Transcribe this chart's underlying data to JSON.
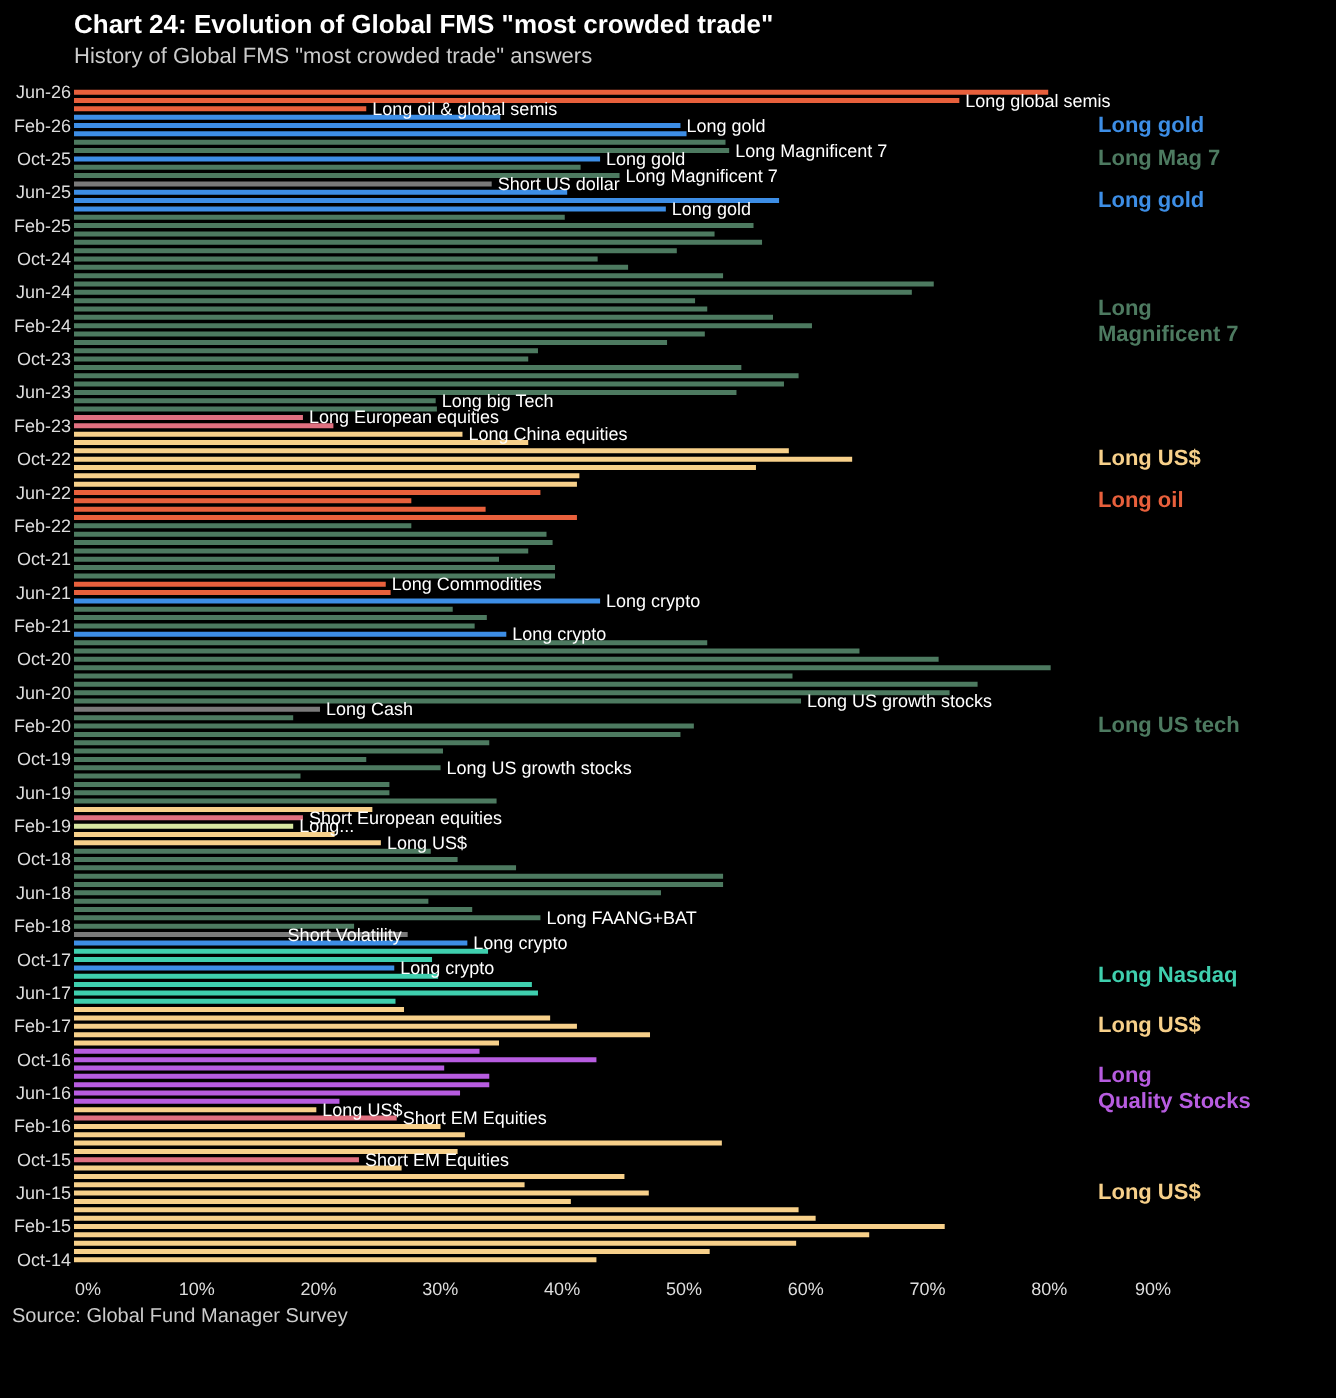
{
  "chart_data": {
    "type": "bar",
    "orientation": "horizontal",
    "title": "Chart 24: Evolution of Global FMS \"most crowded trade\"",
    "subtitle": "History of Global FMS \"most crowded trade\" answers",
    "categories": [
      "Jun-26",
      null,
      null,
      null,
      "Feb-26",
      null,
      null,
      null,
      "Oct-25",
      null,
      null,
      null,
      "Jun-25",
      null,
      null,
      null,
      "Feb-25",
      null,
      null,
      null,
      "Oct-24",
      null,
      null,
      null,
      "Jun-24",
      null,
      null,
      null,
      "Feb-24",
      null,
      null,
      null,
      "Oct-23",
      null,
      null,
      null,
      "Jun-23",
      null,
      null,
      null,
      "Feb-23",
      null,
      null,
      null,
      "Oct-22",
      null,
      null,
      null,
      "Jun-22",
      null,
      null,
      null,
      "Feb-22",
      null,
      null,
      null,
      "Oct-21",
      null,
      null,
      null,
      "Jun-21",
      null,
      null,
      null,
      "Feb-21",
      null,
      null,
      null,
      "Oct-20",
      null,
      null,
      null,
      "Jun-20",
      null,
      null,
      null,
      "Feb-20",
      null,
      null,
      null,
      "Oct-19",
      null,
      null,
      null,
      "Jun-19",
      null,
      null,
      null,
      "Feb-19",
      null,
      null,
      null,
      "Oct-18",
      null,
      null,
      null,
      "Jun-18",
      null,
      null,
      null,
      "Feb-18",
      null,
      null,
      null,
      "Oct-17",
      null,
      null,
      null,
      "Jun-17",
      null,
      null,
      null,
      "Feb-17",
      null,
      null,
      null,
      "Oct-16",
      null,
      null,
      null,
      "Jun-16",
      null,
      null,
      null,
      "Feb-16",
      null,
      null,
      null,
      "Oct-15",
      null,
      null,
      null,
      "Jun-15",
      null,
      null,
      null,
      "Feb-15",
      null,
      null,
      null,
      "Oct-14"
    ],
    "values": [
      80.0,
      72.7,
      24.0,
      35,
      49.8,
      50.3,
      53.5,
      53.8,
      43.2,
      41.6,
      44.8,
      34.3,
      40.5,
      57.9,
      48.6,
      40.3,
      55.8,
      52.6,
      56.5,
      49.5,
      43.0,
      45.5,
      53.3,
      70.6,
      68.8,
      51.0,
      52.0,
      57.4,
      60.6,
      51.8,
      48.7,
      38.1,
      37.3,
      54.8,
      59.5,
      58.3,
      54.4,
      29.7,
      29.8,
      18.8,
      21.3,
      31.9,
      37.3,
      58.7,
      63.9,
      56.0,
      41.5,
      41.3,
      38.3,
      27.7,
      33.8,
      41.3,
      27.7,
      38.8,
      39.3,
      37.3,
      34.9,
      39.5,
      39.5,
      25.6,
      26.0,
      43.2,
      31.1,
      33.9,
      32.9,
      35.5,
      52.0,
      64.5,
      71.0,
      80.2,
      59.0,
      74.2,
      71.9,
      59.7,
      20.2,
      18.0,
      50.9,
      49.8,
      34.1,
      30.3,
      24.0,
      30.1,
      18.6,
      25.9,
      25.9,
      34.7,
      24.5,
      18.8,
      18.0,
      21.4,
      25.2,
      29.3,
      31.5,
      36.3,
      53.3,
      53.3,
      48.2,
      29.1,
      32.7,
      38.3,
      23.0,
      27.4,
      32.3,
      34.0,
      29.4,
      26.3,
      29.9,
      37.6,
      38.1,
      26.4,
      27.1,
      39.1,
      41.3,
      47.3,
      34.9,
      33.3,
      42.9,
      30.4,
      34.1,
      34.1,
      31.7,
      21.8,
      19.9,
      26.5,
      30.1,
      32.1,
      53.2,
      31.5,
      23.4,
      26.9,
      45.2,
      37.0,
      47.2,
      40.8,
      59.5,
      60.9,
      71.5,
      65.3,
      59.3,
      52.2,
      42.9
    ],
    "colors": [
      "#e8603c",
      "#e8603c",
      "#e8603c",
      "#3d8ee6",
      "#3d8ee6",
      "#3d8ee6",
      "#4d7a60",
      "#4d7a60",
      "#3d8ee6",
      "#4d7a60",
      "#4d7a60",
      "#7a7a7a",
      "#3d8ee6",
      "#3d8ee6",
      "#3d8ee6",
      "#4d7a60",
      "#4d7a60",
      "#4d7a60",
      "#4d7a60",
      "#4d7a60",
      "#4d7a60",
      "#4d7a60",
      "#4d7a60",
      "#4d7a60",
      "#4d7a60",
      "#4d7a60",
      "#4d7a60",
      "#4d7a60",
      "#4d7a60",
      "#4d7a60",
      "#4d7a60",
      "#4d7a60",
      "#4d7a60",
      "#4d7a60",
      "#4d7a60",
      "#4d7a60",
      "#4d7a60",
      "#4d7a60",
      "#4d7a60",
      "#e07080",
      "#e07080",
      "#f7d08a",
      "#f7d08a",
      "#f7d08a",
      "#f7d08a",
      "#f7d08a",
      "#f7d08a",
      "#f7d08a",
      "#e8603c",
      "#e8603c",
      "#e8603c",
      "#e8603c",
      "#4d7a60",
      "#4d7a60",
      "#4d7a60",
      "#4d7a60",
      "#4d7a60",
      "#4d7a60",
      "#4d7a60",
      "#e8603c",
      "#e8603c",
      "#3d8ee6",
      "#4d7a60",
      "#4d7a60",
      "#4d7a60",
      "#3d8ee6",
      "#4d7a60",
      "#4d7a60",
      "#4d7a60",
      "#4d7a60",
      "#4d7a60",
      "#4d7a60",
      "#4d7a60",
      "#4d7a60",
      "#7a7a7a",
      "#4d7a60",
      "#4d7a60",
      "#4d7a60",
      "#4d7a60",
      "#4d7a60",
      "#4d7a60",
      "#4d7a60",
      "#4d7a60",
      "#4d7a60",
      "#4d7a60",
      "#4d7a60",
      "#f7d08a",
      "#e07080",
      "#d7e6a0",
      "#f7d08a",
      "#f7d08a",
      "#4d7a60",
      "#4d7a60",
      "#4d7a60",
      "#4d7a60",
      "#4d7a60",
      "#4d7a60",
      "#4d7a60",
      "#4d7a60",
      "#4d7a60",
      "#4d7a60",
      "#7a7a7a",
      "#3d8ee6",
      "#3fcfae",
      "#3fcfae",
      "#3d8ee6",
      "#3fcfae",
      "#3fcfae",
      "#3fcfae",
      "#3fcfae",
      "#f7d08a",
      "#f7d08a",
      "#f7d08a",
      "#f7d08a",
      "#f7d08a",
      "#b75ce0",
      "#b75ce0",
      "#b75ce0",
      "#b75ce0",
      "#b75ce0",
      "#b75ce0",
      "#b75ce0",
      "#f7d08a",
      "#e07080",
      "#f7d08a",
      "#f7d08a",
      "#f7d08a",
      "#f7d08a",
      "#e07080",
      "#f7d08a",
      "#f7d08a",
      "#f7d08a",
      "#f7d08a",
      "#f7d08a",
      "#f7d08a",
      "#f7d08a",
      "#f7d08a",
      "#f7d08a",
      "#f7d08a",
      "#f7d08a",
      "#f7d08a"
    ],
    "value_labels": [
      null,
      "Long global semis",
      "Long oil & global semis",
      null,
      "Long gold",
      null,
      null,
      "Long Magnificent 7",
      "Long gold",
      null,
      "Long Magnificent 7",
      "Short US dollar",
      null,
      null,
      "Long gold",
      null,
      null,
      null,
      null,
      null,
      null,
      null,
      null,
      null,
      null,
      null,
      null,
      null,
      null,
      null,
      null,
      null,
      null,
      null,
      null,
      null,
      null,
      "Long big Tech",
      null,
      "Long European equities",
      null,
      "Long China equities",
      null,
      null,
      null,
      null,
      null,
      null,
      null,
      null,
      null,
      null,
      null,
      null,
      null,
      null,
      null,
      null,
      null,
      "Long Commodities",
      null,
      "Long crypto",
      null,
      null,
      null,
      "Long crypto",
      null,
      null,
      null,
      null,
      null,
      null,
      null,
      "Long US growth stocks",
      "Long Cash",
      null,
      null,
      null,
      null,
      null,
      null,
      "Long US growth stocks",
      null,
      null,
      null,
      null,
      null,
      "Short European equities",
      "Long...",
      null,
      "Long US$",
      null,
      null,
      null,
      null,
      null,
      null,
      null,
      null,
      "Long FAANG+BAT",
      null,
      "Short Volatility",
      "Long crypto",
      null,
      null,
      "Long crypto",
      null,
      null,
      null,
      null,
      null,
      null,
      null,
      null,
      null,
      null,
      null,
      null,
      null,
      null,
      null,
      null,
      "Long US$",
      "Short EM Equities",
      null,
      null,
      null,
      null,
      "Short EM Equities",
      null,
      null,
      null,
      null,
      null,
      null,
      null,
      null,
      null,
      null,
      null,
      null
    ],
    "xlim": [
      0,
      90
    ],
    "xticks": [
      {
        "value": 0,
        "label": "0%"
      },
      {
        "value": 10,
        "label": "10%"
      },
      {
        "value": 20,
        "label": "20%"
      },
      {
        "value": 30,
        "label": "30%"
      },
      {
        "value": 40,
        "label": "40%"
      },
      {
        "value": 50,
        "label": "50%"
      },
      {
        "value": 60,
        "label": "60%"
      },
      {
        "value": 70,
        "label": "70%"
      },
      {
        "value": 80,
        "label": "80%"
      },
      {
        "value": 90,
        "label": "90%"
      }
    ],
    "annotations": [
      "Long gold",
      "Long Mag 7",
      "Long gold",
      "Long Magnificent 7",
      "Long US$",
      "Long oil",
      "Long US tech",
      "Long Nasdaq",
      "Long US$",
      "Long Quality Stocks",
      "Long US$",
      "Source: Global Fund Manager Survey"
    ]
  }
}
